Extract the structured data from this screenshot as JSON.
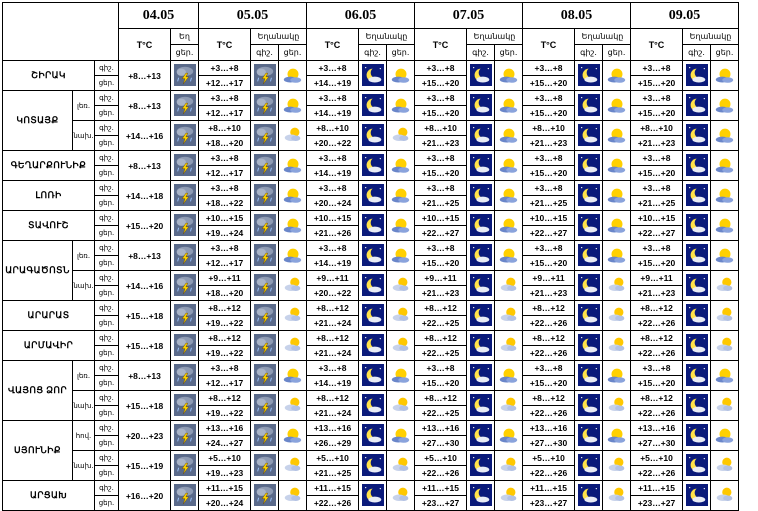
{
  "dates": [
    "04.05",
    "05.05",
    "06.05",
    "07.05",
    "08.05",
    "09.05"
  ],
  "labels": {
    "temp": "T°C",
    "cond": "Եղ",
    "weather": "Եղանակը",
    "night": "գիշ.",
    "day": "ցեր."
  },
  "day0": {
    "temp": "+8…+13",
    "icon": "storm-icon"
  },
  "regions": [
    {
      "name": "ՇԻՐԱԿ",
      "sub": "",
      "d0": {
        "t": "+8…+13",
        "i": "storm-icon"
      },
      "days": [
        [
          "+3…+8",
          "+12…+17",
          "storm",
          "sun"
        ],
        [
          "+3…+8",
          "+14…+19",
          "moon",
          "sun"
        ],
        [
          "+3…+8",
          "+15…+20",
          "moon",
          "sun"
        ],
        [
          "+3…+8",
          "+15…+20",
          "moon",
          "sun"
        ],
        [
          "+3…+8",
          "+15…+20",
          "moon",
          "sun"
        ]
      ]
    },
    {
      "name": "ԿՈՏԱՅՔ",
      "sub": "լեռ.",
      "d0": {
        "t": "+8…+13",
        "i": "storm-icon"
      },
      "days": [
        [
          "+3…+8",
          "+12…+17",
          "storm",
          "sun"
        ],
        [
          "+3…+8",
          "+14…+19",
          "moon",
          "sun"
        ],
        [
          "+3…+8",
          "+15…+20",
          "moon",
          "sun"
        ],
        [
          "+3…+8",
          "+15…+20",
          "moon",
          "sun"
        ],
        [
          "+3…+8",
          "+15…+20",
          "moon",
          "sun"
        ]
      ]
    },
    {
      "name": "",
      "sub": "նախ.",
      "d0": {
        "t": "+14…+16",
        "i": "storm-icon"
      },
      "days": [
        [
          "+8…+10",
          "+18…+20",
          "storm",
          "cloud-sun"
        ],
        [
          "+8…+10",
          "+20…+22",
          "moon",
          "cloud-sun"
        ],
        [
          "+8…+10",
          "+21…+23",
          "moon",
          "sun"
        ],
        [
          "+8…+10",
          "+21…+23",
          "moon",
          "sun"
        ],
        [
          "+8…+10",
          "+21…+23",
          "moon",
          "sun"
        ]
      ]
    },
    {
      "name": "ԳԵՂԱՐՔՈՒՆԻՔ",
      "sub": "",
      "d0": {
        "t": "+8…+13",
        "i": "storm-icon"
      },
      "days": [
        [
          "+3…+8",
          "+12…+17",
          "storm",
          "sun"
        ],
        [
          "+3…+8",
          "+14…+19",
          "moon",
          "sun"
        ],
        [
          "+3…+8",
          "+15…+20",
          "moon",
          "sun"
        ],
        [
          "+3…+8",
          "+15…+20",
          "moon",
          "sun"
        ],
        [
          "+3…+8",
          "+15…+20",
          "moon",
          "sun"
        ]
      ]
    },
    {
      "name": "ԼՈՌԻ",
      "sub": "",
      "d0": {
        "t": "+14…+18",
        "i": "storm-icon"
      },
      "days": [
        [
          "+3…+8",
          "+18…+22",
          "storm",
          "sun"
        ],
        [
          "+3…+8",
          "+20…+24",
          "moon",
          "sun"
        ],
        [
          "+3…+8",
          "+21…+25",
          "moon",
          "sun"
        ],
        [
          "+3…+8",
          "+21…+25",
          "moon",
          "sun"
        ],
        [
          "+3…+8",
          "+21…+25",
          "moon",
          "sun"
        ]
      ]
    },
    {
      "name": "ՏԱՎՈՒՇ",
      "sub": "",
      "d0": {
        "t": "+15…+20",
        "i": "storm-icon"
      },
      "days": [
        [
          "+10…+15",
          "+19…+24",
          "storm",
          "sun"
        ],
        [
          "+10…+15",
          "+21…+26",
          "moon",
          "sun"
        ],
        [
          "+10…+15",
          "+22…+27",
          "moon",
          "sun"
        ],
        [
          "+10…+15",
          "+22…+27",
          "moon",
          "sun"
        ],
        [
          "+10…+15",
          "+22…+27",
          "moon",
          "sun"
        ]
      ]
    },
    {
      "name": "ԱՐԱԳԱԾՈՏՆ",
      "sub": "լեռ.",
      "d0": {
        "t": "+8…+13",
        "i": "storm-icon"
      },
      "days": [
        [
          "+3…+8",
          "+12…+17",
          "storm",
          "sun"
        ],
        [
          "+3…+8",
          "+14…+19",
          "moon",
          "sun"
        ],
        [
          "+3…+8",
          "+15…+20",
          "moon",
          "sun"
        ],
        [
          "+3…+8",
          "+15…+20",
          "moon",
          "sun"
        ],
        [
          "+3…+8",
          "+15…+20",
          "moon",
          "sun"
        ]
      ]
    },
    {
      "name": "",
      "sub": "նախ.",
      "d0": {
        "t": "+14…+16",
        "i": "storm-icon"
      },
      "days": [
        [
          "+9…+11",
          "+18…+20",
          "storm",
          "cloud-sun"
        ],
        [
          "+9…+11",
          "+20…+22",
          "moon",
          "cloud-sun"
        ],
        [
          "+9…+11",
          "+21…+23",
          "moon",
          "cloud-sun"
        ],
        [
          "+9…+11",
          "+21…+23",
          "moon",
          "cloud-sun"
        ],
        [
          "+9…+11",
          "+21…+23",
          "moon",
          "cloud-sun"
        ]
      ]
    },
    {
      "name": "ԱՐԱՐԱՏ",
      "sub": "",
      "d0": {
        "t": "+15…+18",
        "i": "storm-icon"
      },
      "days": [
        [
          "+8…+12",
          "+19…+22",
          "storm",
          "cloud-sun"
        ],
        [
          "+8…+12",
          "+21…+24",
          "moon",
          "cloud-sun"
        ],
        [
          "+8…+12",
          "+22…+25",
          "moon",
          "cloud-sun"
        ],
        [
          "+8…+12",
          "+22…+26",
          "moon",
          "cloud-sun"
        ],
        [
          "+8…+12",
          "+22…+26",
          "moon",
          "cloud-sun"
        ]
      ]
    },
    {
      "name": "ԱՐՄԱՎԻՐ",
      "sub": "",
      "d0": {
        "t": "+15…+18",
        "i": "storm-icon"
      },
      "days": [
        [
          "+8…+12",
          "+19…+22",
          "storm",
          "cloud-sun"
        ],
        [
          "+8…+12",
          "+21…+24",
          "moon",
          "cloud-sun"
        ],
        [
          "+8…+12",
          "+22…+25",
          "moon",
          "cloud-sun"
        ],
        [
          "+8…+12",
          "+22…+26",
          "moon",
          "cloud-sun"
        ],
        [
          "+8…+12",
          "+22…+26",
          "moon",
          "cloud-sun"
        ]
      ]
    },
    {
      "name": "ՎԱՅՈՑ ՁՈՐ",
      "sub": "լեռ.",
      "d0": {
        "t": "+8…+13",
        "i": "storm-icon"
      },
      "days": [
        [
          "+3…+8",
          "+12…+17",
          "storm",
          "sun"
        ],
        [
          "+3…+8",
          "+14…+19",
          "moon",
          "sun"
        ],
        [
          "+3…+8",
          "+15…+20",
          "moon",
          "sun"
        ],
        [
          "+3…+8",
          "+15…+20",
          "moon",
          "sun"
        ],
        [
          "+3…+8",
          "+15…+20",
          "moon",
          "sun"
        ]
      ]
    },
    {
      "name": "",
      "sub": "նախ.",
      "d0": {
        "t": "+15…+18",
        "i": "storm-icon"
      },
      "days": [
        [
          "+8…+12",
          "+19…+22",
          "storm",
          "cloud-sun"
        ],
        [
          "+8…+12",
          "+21…+24",
          "moon",
          "cloud-sun"
        ],
        [
          "+8…+12",
          "+22…+25",
          "moon",
          "cloud-sun"
        ],
        [
          "+8…+12",
          "+22…+26",
          "moon",
          "cloud-sun"
        ],
        [
          "+8…+12",
          "+22…+26",
          "moon",
          "cloud-sun"
        ]
      ]
    },
    {
      "name": "ՍՅՈՒՆԻՔ",
      "sub": "հով.",
      "d0": {
        "t": "+20…+23",
        "i": "storm-icon"
      },
      "days": [
        [
          "+13…+16",
          "+24…+27",
          "storm",
          "sun"
        ],
        [
          "+13…+16",
          "+26…+29",
          "moon",
          "sun"
        ],
        [
          "+13…+16",
          "+27…+30",
          "moon",
          "sun"
        ],
        [
          "+13…+16",
          "+27…+30",
          "moon",
          "sun"
        ],
        [
          "+13…+16",
          "+27…+30",
          "moon",
          "sun"
        ]
      ]
    },
    {
      "name": "",
      "sub": "նախ.",
      "d0": {
        "t": "+15…+19",
        "i": "storm-icon"
      },
      "days": [
        [
          "+5…+10",
          "+19…+23",
          "storm",
          "cloud-sun"
        ],
        [
          "+5…+10",
          "+21…+25",
          "moon",
          "cloud-sun"
        ],
        [
          "+5…+10",
          "+22…+26",
          "moon",
          "cloud-sun"
        ],
        [
          "+5…+10",
          "+22…+26",
          "moon",
          "cloud-sun"
        ],
        [
          "+5…+10",
          "+22…+26",
          "moon",
          "cloud-sun"
        ]
      ]
    },
    {
      "name": "ԱՐՑԱԽ",
      "sub": "",
      "d0": {
        "t": "+16…+20",
        "i": "storm-icon"
      },
      "days": [
        [
          "+11…+15",
          "+20…+24",
          "storm",
          "cloud-sun"
        ],
        [
          "+11…+15",
          "+22…+26",
          "moon",
          "cloud-sun"
        ],
        [
          "+11…+15",
          "+23…+27",
          "moon",
          "cloud-sun"
        ],
        [
          "+11…+15",
          "+23…+27",
          "moon",
          "cloud-sun"
        ],
        [
          "+11…+15",
          "+23…+27",
          "moon",
          "cloud-sun"
        ]
      ]
    }
  ]
}
